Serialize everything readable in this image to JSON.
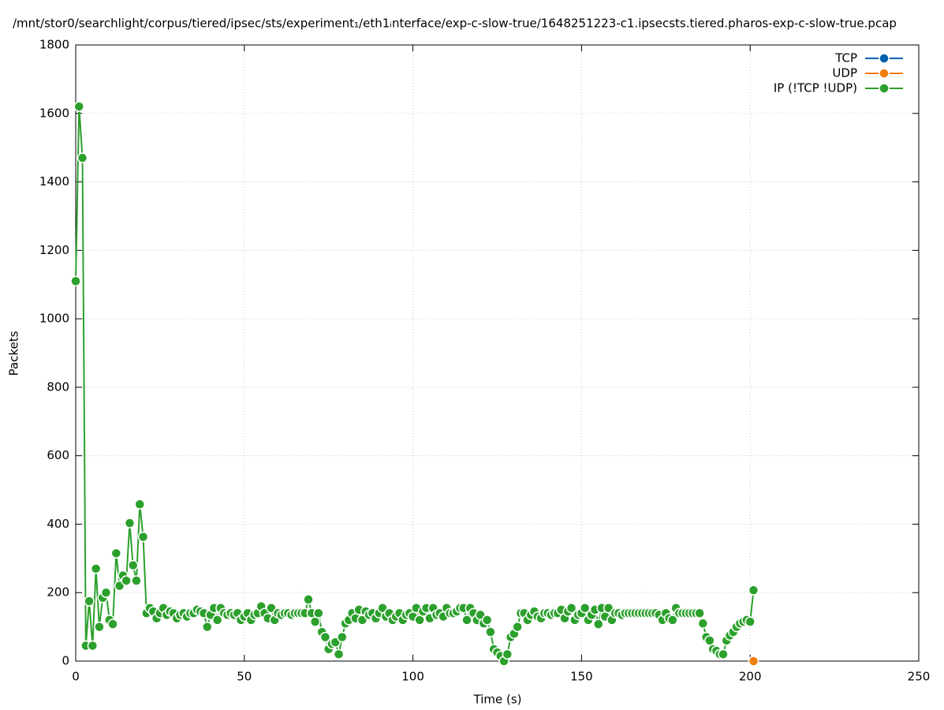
{
  "chart_data": {
    "type": "line",
    "title": "/mnt/stor0/searchlight/corpus/tiered/ipsec/sts/experiment₁/eth1ᵢnterface/exp-c-slow-true/1648251223-c1.ipsecsts.tiered.pharos-exp-c-slow-true.pcap",
    "xlabel": "Time (s)",
    "ylabel": "Packets",
    "xlim": [
      0,
      250
    ],
    "xticks": [
      0,
      50,
      100,
      150,
      200,
      250
    ],
    "ylim": [
      0,
      1800
    ],
    "yticks": [
      0,
      200,
      400,
      600,
      800,
      1000,
      1200,
      1400,
      1600,
      1800
    ],
    "grid": true,
    "legend": "top-right",
    "series": [
      {
        "name": "TCP",
        "color": "#0060ad",
        "x": [],
        "values": []
      },
      {
        "name": "UDP",
        "color": "#f07f0e",
        "x": [
          201
        ],
        "values": [
          0
        ]
      },
      {
        "name": "IP (!TCP  !UDP)",
        "color": "#2ca02c",
        "x": [
          0,
          1,
          2,
          3,
          4,
          5,
          6,
          7,
          8,
          9,
          10,
          11,
          12,
          13,
          14,
          15,
          16,
          17,
          18,
          19,
          20,
          21,
          22,
          23,
          24,
          25,
          26,
          27,
          28,
          29,
          30,
          31,
          32,
          33,
          34,
          35,
          36,
          37,
          38,
          39,
          40,
          41,
          42,
          43,
          44,
          45,
          46,
          47,
          48,
          49,
          50,
          51,
          52,
          53,
          54,
          55,
          56,
          57,
          58,
          59,
          60,
          61,
          62,
          63,
          64,
          65,
          66,
          67,
          68,
          69,
          70,
          71,
          72,
          73,
          74,
          75,
          76,
          77,
          78,
          79,
          80,
          81,
          82,
          83,
          84,
          85,
          86,
          87,
          88,
          89,
          90,
          91,
          92,
          93,
          94,
          95,
          96,
          97,
          98,
          99,
          100,
          101,
          102,
          103,
          104,
          105,
          106,
          107,
          108,
          109,
          110,
          111,
          112,
          113,
          114,
          115,
          116,
          117,
          118,
          119,
          120,
          121,
          122,
          123,
          124,
          125,
          126,
          127,
          128,
          129,
          130,
          131,
          132,
          133,
          134,
          135,
          136,
          137,
          138,
          139,
          140,
          141,
          142,
          143,
          144,
          145,
          146,
          147,
          148,
          149,
          150,
          151,
          152,
          153,
          154,
          155,
          156,
          157,
          158,
          159,
          160,
          161,
          162,
          163,
          164,
          165,
          166,
          167,
          168,
          169,
          170,
          171,
          172,
          173,
          174,
          175,
          176,
          177,
          178,
          179,
          180,
          181,
          182,
          183,
          184,
          185,
          186,
          187,
          188,
          189,
          190,
          191,
          192,
          193,
          194,
          195,
          196,
          197,
          198,
          199,
          200,
          201
        ],
        "values": [
          1110,
          1620,
          1470,
          45,
          175,
          45,
          270,
          100,
          185,
          200,
          120,
          108,
          315,
          220,
          250,
          235,
          403,
          280,
          235,
          458,
          363,
          140,
          155,
          145,
          125,
          140,
          155,
          135,
          145,
          140,
          125,
          135,
          140,
          130,
          140,
          140,
          150,
          145,
          140,
          100,
          135,
          155,
          120,
          155,
          140,
          135,
          140,
          135,
          140,
          120,
          130,
          140,
          120,
          135,
          140,
          160,
          140,
          125,
          155,
          120,
          140,
          135,
          140,
          140,
          135,
          140,
          140,
          140,
          140,
          180,
          140,
          115,
          140,
          85,
          70,
          35,
          50,
          55,
          20,
          70,
          110,
          120,
          140,
          125,
          150,
          120,
          145,
          135,
          140,
          125,
          140,
          155,
          130,
          140,
          120,
          130,
          140,
          120,
          135,
          140,
          130,
          155,
          120,
          145,
          155,
          125,
          155,
          135,
          140,
          130,
          155,
          140,
          140,
          145,
          155,
          155,
          120,
          155,
          140,
          120,
          135,
          110,
          120,
          85,
          35,
          25,
          15,
          0,
          20,
          70,
          80,
          100,
          140,
          140,
          120,
          135,
          145,
          130,
          125,
          140,
          140,
          135,
          140,
          140,
          150,
          125,
          145,
          155,
          120,
          135,
          140,
          155,
          120,
          135,
          150,
          108,
          155,
          130,
          155,
          120,
          140,
          140,
          135,
          140,
          140,
          140,
          140,
          140,
          140,
          140,
          140,
          140,
          140,
          135,
          120,
          140,
          125,
          120,
          155,
          140,
          140,
          140,
          140,
          140,
          140,
          140,
          110,
          70,
          60,
          35,
          30,
          20,
          20,
          60,
          75,
          85,
          100,
          110,
          115,
          120,
          115,
          207
        ]
      }
    ]
  }
}
